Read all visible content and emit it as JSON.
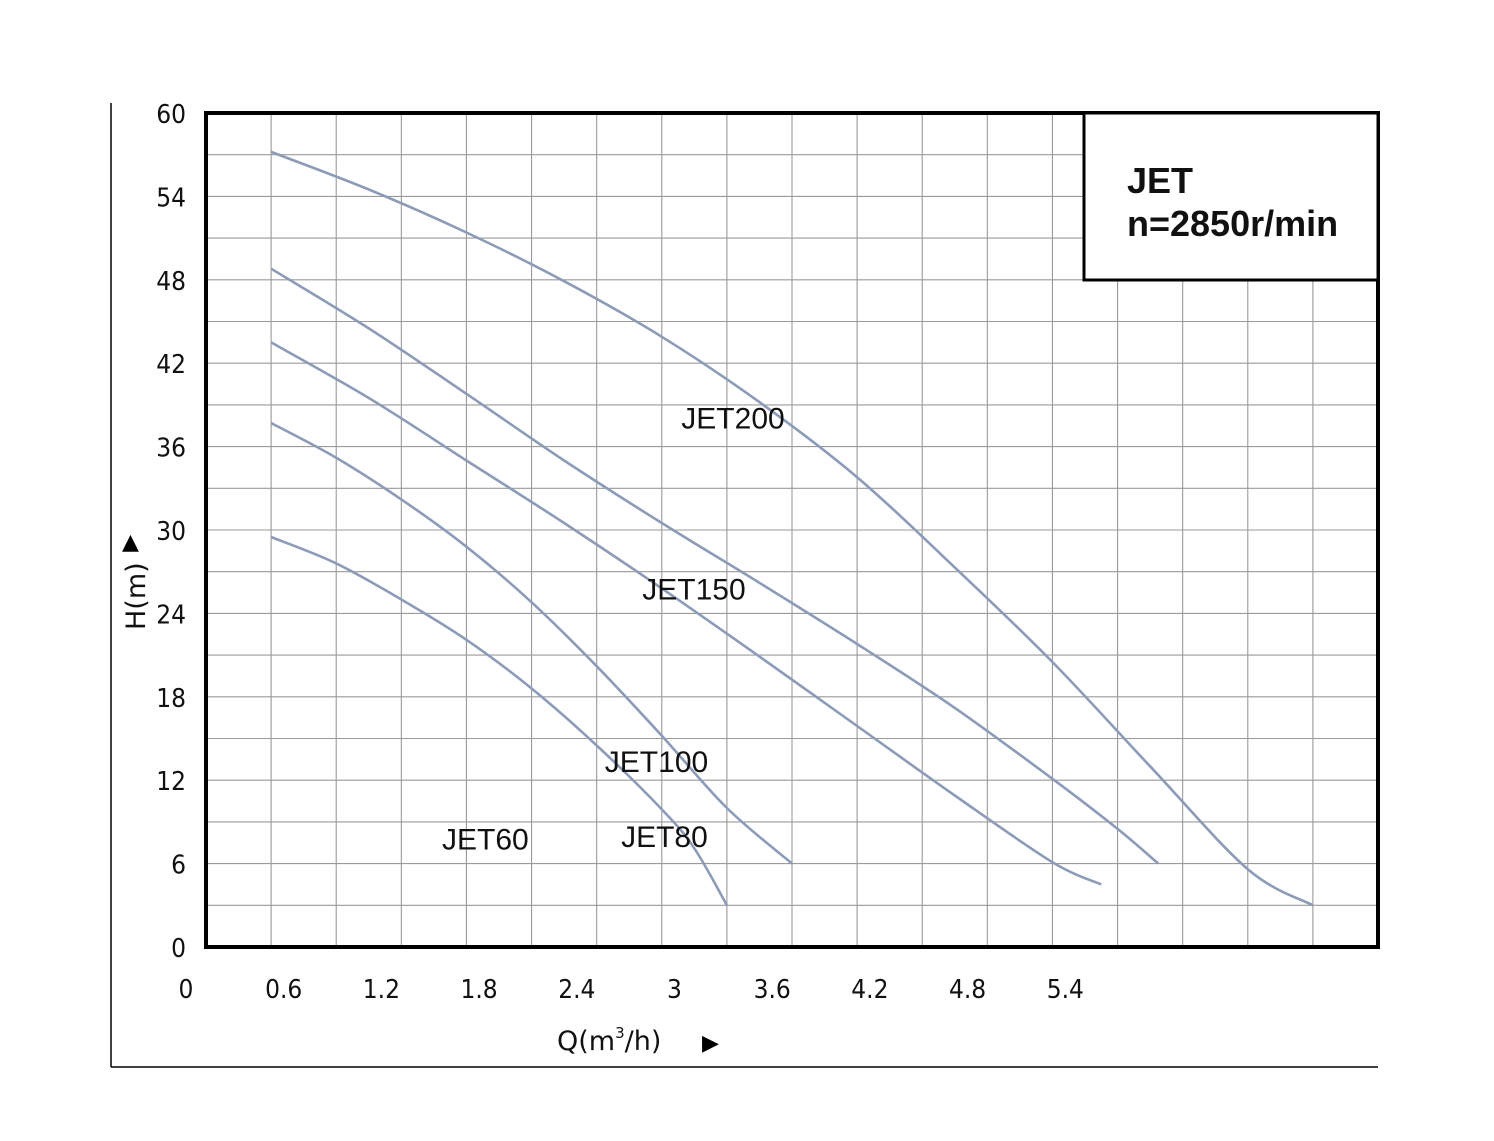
{
  "chart_data": {
    "type": "line",
    "title": "",
    "info_box": {
      "line1": "JET",
      "line2": "n=2850r/min"
    },
    "xlabel": "Q(m³/h)",
    "xlabel_main": "Q(m",
    "xlabel_sup": "3",
    "xlabel_tail": "/h)",
    "ylabel": "H(m)",
    "axis_arrow": "▶",
    "y_arrow": "▲",
    "xlim": [
      0,
      7.2
    ],
    "ylim": [
      0,
      60
    ],
    "x_ticks": [
      "0",
      "0.6",
      "1.2",
      "1.8",
      "2.4",
      "3",
      "3.6",
      "4.2",
      "4.8",
      "5.4"
    ],
    "y_ticks": [
      "0",
      "6",
      "12",
      "18",
      "24",
      "30",
      "36",
      "42",
      "48",
      "54",
      "60"
    ],
    "grid": true,
    "curve_color": "#8c9bb8",
    "series": [
      {
        "name": "JET60",
        "label_at": [
          1.45,
          7
        ],
        "x": [
          0.4,
          0.8,
          1.2,
          1.6,
          2.0,
          2.4,
          2.8,
          3.0,
          3.2
        ],
        "y": [
          29.5,
          27.6,
          25.0,
          22.1,
          18.6,
          14.5,
          9.9,
          7.1,
          3.0
        ]
      },
      {
        "name": "JET80",
        "label_at": [
          2.55,
          7.2
        ],
        "x": [
          0.4,
          0.8,
          1.2,
          1.6,
          2.0,
          2.4,
          2.8,
          3.2,
          3.6
        ],
        "y": [
          37.7,
          35.2,
          32.2,
          28.8,
          24.8,
          20.2,
          15.2,
          10.0,
          6.0
        ]
      },
      {
        "name": "JET100",
        "label_at": [
          2.45,
          12.6
        ],
        "x": [
          0.4,
          1.0,
          1.6,
          2.2,
          2.8,
          3.4,
          4.0,
          4.6,
          5.2,
          5.5
        ],
        "y": [
          43.5,
          39.5,
          35.0,
          30.5,
          25.8,
          20.9,
          15.9,
          10.9,
          6.1,
          4.5
        ]
      },
      {
        "name": "JET150",
        "label_at": [
          2.68,
          25.0
        ],
        "x": [
          0.4,
          1.0,
          1.6,
          2.2,
          2.8,
          3.4,
          4.0,
          4.6,
          5.2,
          5.6,
          5.85
        ],
        "y": [
          48.8,
          44.5,
          39.8,
          35.0,
          30.5,
          26.2,
          21.8,
          17.2,
          12.1,
          8.5,
          6.0
        ]
      },
      {
        "name": "JET200",
        "label_at": [
          2.92,
          37.3
        ],
        "x": [
          0.4,
          1.0,
          1.6,
          2.2,
          2.8,
          3.4,
          4.0,
          4.6,
          5.2,
          5.8,
          6.4,
          6.8
        ],
        "y": [
          57.2,
          54.5,
          51.4,
          47.9,
          43.9,
          39.2,
          33.8,
          27.3,
          20.5,
          13.0,
          5.6,
          3.0
        ]
      }
    ]
  }
}
